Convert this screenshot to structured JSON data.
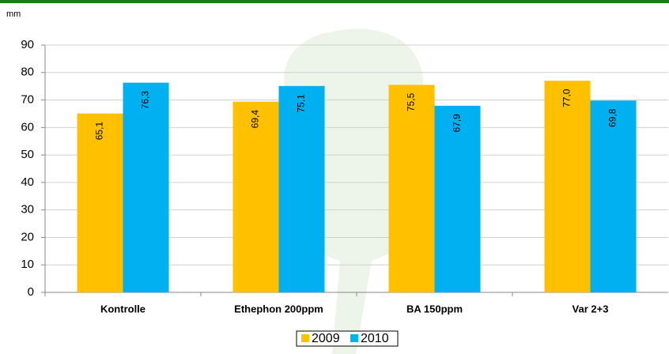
{
  "chart_data": {
    "type": "bar",
    "y_label": "mm",
    "categories": [
      "Kontrolle",
      "Ethephon 200ppm",
      "BA 150ppm",
      "Var 2+3"
    ],
    "series": [
      {
        "name": "2009",
        "color": "#ffc000",
        "values": [
          65.1,
          69.4,
          75.5,
          77.0
        ],
        "value_labels": [
          "65,1",
          "69,4",
          "75,5",
          "77,0"
        ]
      },
      {
        "name": "2010",
        "color": "#00b0f0",
        "values": [
          76.3,
          75.1,
          67.9,
          69.8
        ],
        "value_labels": [
          "76,3",
          "75,1",
          "67,9",
          "69,8"
        ]
      }
    ],
    "ylim": [
      0,
      90
    ],
    "yticks": [
      0,
      10,
      20,
      30,
      40,
      50,
      60,
      70,
      80,
      90
    ],
    "grid": true,
    "legend": "bottom"
  }
}
